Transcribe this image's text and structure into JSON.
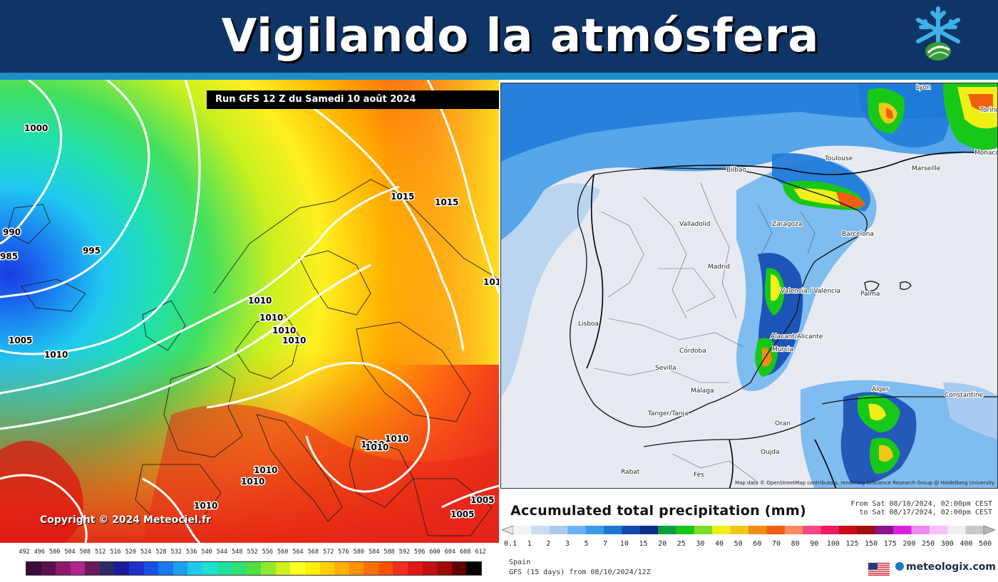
{
  "header": {
    "title": "Vigilando la atmósfera",
    "logo_icon": "snowflake-logo-icon"
  },
  "left_map": {
    "run_label": "Run GFS 12 Z du Samedi 10 août 2024",
    "copyright": "Copyright © 2024 Meteociel.fr",
    "isobar_labels": [
      "1000",
      "990",
      "985",
      "995",
      "1005",
      "1010",
      "1015",
      "1015",
      "1010",
      "1010",
      "1010",
      "1010",
      "1010",
      "1010",
      "1010",
      "1010",
      "1010",
      "1010",
      "1005",
      "1005",
      "101"
    ],
    "legend_ticks": [
      "492",
      "496",
      "500",
      "504",
      "508",
      "512",
      "516",
      "520",
      "524",
      "528",
      "532",
      "536",
      "540",
      "544",
      "548",
      "552",
      "556",
      "560",
      "564",
      "568",
      "572",
      "576",
      "580",
      "584",
      "588",
      "592",
      "596",
      "600",
      "604",
      "608",
      "612"
    ],
    "legend_colors": [
      "#3a0a3a",
      "#5a0f4e",
      "#8a1a6a",
      "#b02490",
      "#6a1a5a",
      "#2a2a6a",
      "#1a1a9a",
      "#2030c8",
      "#1a50e0",
      "#1a78f0",
      "#1aa0f0",
      "#20c8f0",
      "#20e0d0",
      "#20e0a0",
      "#30e070",
      "#50e040",
      "#90e830",
      "#d0f020",
      "#ffff20",
      "#fff000",
      "#ffd000",
      "#ffb000",
      "#ff9000",
      "#ff7000",
      "#ff5000",
      "#f03020",
      "#e01818",
      "#c01010",
      "#a00808",
      "#600000",
      "#000000"
    ]
  },
  "right_map": {
    "cities": [
      "Lyon",
      "Torino",
      "Monaco",
      "Toulouse",
      "Marseille",
      "Bilbao",
      "Valladolid",
      "Zaragoza",
      "Barcelona",
      "Madrid",
      "Palma",
      "Valencia / València",
      "Lisboa",
      "Alacant/Alicante",
      "Murcia",
      "Córdoba",
      "Sevilla",
      "Málaga",
      "Alger",
      "Constantine",
      "Tanger/Tanja",
      "Oran",
      "Oujda",
      "Rabat",
      "Fès"
    ],
    "credit": "Map data © OpenStreetMap contributors, rendering GIScience Research Group @ Heidelberg University",
    "title": "Accumulated total precipitation (mm)",
    "from": "From Sat 08/10/2024, 02:00pm CEST",
    "to": "to Sat 08/17/2024, 02:00pm CEST",
    "legend_ticks": [
      "0.1",
      "1",
      "2",
      "3",
      "5",
      "7",
      "10",
      "15",
      "20",
      "25",
      "30",
      "40",
      "50",
      "60",
      "70",
      "80",
      "90",
      "100",
      "125",
      "150",
      "175",
      "200",
      "250",
      "300",
      "400",
      "500"
    ],
    "legend_colors": [
      "#f2f2fa",
      "#c8dcf4",
      "#a8ccf0",
      "#6cb4f0",
      "#3c9ae8",
      "#1c78d8",
      "#1448b0",
      "#0c2c88",
      "#08a040",
      "#18c818",
      "#80dc28",
      "#f0f018",
      "#f0c818",
      "#f08c18",
      "#f06010",
      "#f88c60",
      "#f84880",
      "#f01860",
      "#c80c18",
      "#a0100c",
      "#8c1488",
      "#e020e0",
      "#f088f0",
      "#f8c0f8",
      "#f0f0f0",
      "#c8c8c8"
    ],
    "region": "Spain",
    "model": "GFS (15 days) from 08/10/2024/12Z",
    "brand": "meteologix.com",
    "flag_icon": "us-flag-icon"
  }
}
